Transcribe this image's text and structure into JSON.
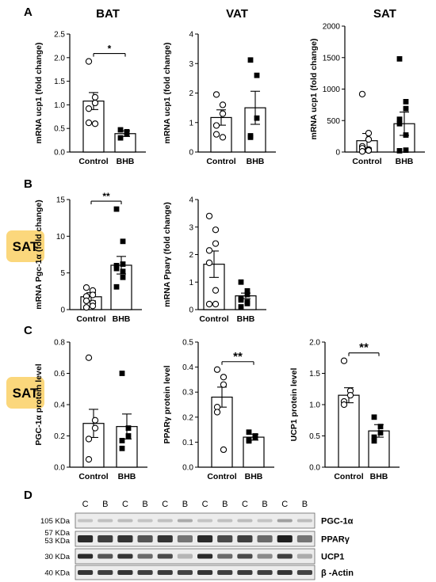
{
  "panel_labels": [
    "A",
    "B",
    "C",
    "D"
  ],
  "sat_badges": [
    "SAT",
    "SAT"
  ],
  "badge_color": "#fbd77c",
  "chart_data": [
    {
      "id": "a1",
      "type": "bar",
      "title": "BAT",
      "ylabel": "mRNA ucp1 (fold change)",
      "ylim": [
        0,
        2.5
      ],
      "yticks": [
        "0.0",
        "0.5",
        "1.0",
        "1.5",
        "2.0",
        "2.5"
      ],
      "categories": [
        "Control",
        "BHB"
      ],
      "values": [
        1.08,
        0.39
      ],
      "errors": [
        0.18,
        0.06
      ],
      "points": [
        [
          1.92,
          1.16,
          1.04,
          0.92,
          0.62,
          0.6
        ],
        [
          0.47,
          0.43,
          0.38,
          0.3
        ]
      ],
      "significance": "*"
    },
    {
      "id": "a2",
      "type": "bar",
      "title": "VAT",
      "ylabel": "mRNA ucp1 (fold change)",
      "ylim": [
        0,
        4
      ],
      "yticks": [
        "0",
        "1",
        "2",
        "3",
        "4"
      ],
      "categories": [
        "Control",
        "BHB"
      ],
      "values": [
        1.17,
        1.5
      ],
      "errors": [
        0.26,
        0.56
      ],
      "points": [
        [
          1.95,
          1.6,
          1.3,
          0.9,
          0.6,
          0.5
        ],
        [
          3.12,
          2.6,
          1.15,
          0.55,
          0.5
        ]
      ],
      "significance": ""
    },
    {
      "id": "a3",
      "type": "bar",
      "title": "SAT",
      "ylabel": "mRNA ucp1 (fold change)",
      "ylim": [
        0,
        2000
      ],
      "yticks": [
        "0",
        "500",
        "1000",
        "1500",
        "2000"
      ],
      "categories": [
        "Control",
        "BHB"
      ],
      "values": [
        180,
        450
      ],
      "errors": [
        115,
        185
      ],
      "points": [
        [
          920,
          300,
          200,
          90,
          60,
          40,
          25,
          10
        ],
        [
          1480,
          800,
          690,
          520,
          450,
          270,
          30,
          20
        ]
      ],
      "significance": ""
    },
    {
      "id": "b1",
      "type": "bar",
      "title": "",
      "ylabel": "mRNA Pgc-1α (fold change)",
      "ylim": [
        0,
        15
      ],
      "yticks": [
        "0",
        "5",
        "10",
        "15"
      ],
      "categories": [
        "Control",
        "BHB"
      ],
      "values": [
        1.75,
        6.05
      ],
      "errors": [
        0.55,
        1.2
      ],
      "points": [
        [
          3.0,
          2.6,
          2.0,
          1.8,
          1.2,
          0.9,
          0.5,
          0.3
        ],
        [
          13.7,
          9.3,
          6.2,
          6.0,
          5.6,
          5.2,
          4.4,
          3.1
        ]
      ],
      "significance": "**"
    },
    {
      "id": "b2",
      "type": "bar",
      "title": "",
      "ylabel": "mRNA Pparγ (fold change)",
      "ylim": [
        0,
        4
      ],
      "yticks": [
        "0",
        "1",
        "2",
        "3",
        "4"
      ],
      "categories": [
        "Control",
        "BHB"
      ],
      "values": [
        1.65,
        0.5
      ],
      "errors": [
        0.48,
        0.1
      ],
      "points": [
        [
          3.4,
          2.9,
          2.4,
          2.15,
          1.7,
          0.7,
          0.2,
          0.2
        ],
        [
          1.0,
          0.68,
          0.55,
          0.42,
          0.35,
          0.28,
          0.22,
          0.1
        ]
      ],
      "significance": ""
    },
    {
      "id": "c1",
      "type": "bar",
      "title": "",
      "ylabel": "PGC-1α protein level",
      "ylim": [
        0,
        0.8
      ],
      "yticks": [
        "0.0",
        "0.2",
        "0.4",
        "0.6",
        "0.8"
      ],
      "categories": [
        "Control",
        "BHB"
      ],
      "values": [
        0.28,
        0.26
      ],
      "errors": [
        0.09,
        0.08
      ],
      "points": [
        [
          0.7,
          0.3,
          0.25,
          0.18,
          0.05
        ],
        [
          0.6,
          0.25,
          0.2,
          0.17,
          0.12
        ]
      ],
      "significance": ""
    },
    {
      "id": "c2",
      "type": "bar",
      "title": "",
      "ylabel": "PPARγ protein level",
      "ylim": [
        0,
        0.5
      ],
      "yticks": [
        "0.0",
        "0.1",
        "0.2",
        "0.3",
        "0.4",
        "0.5"
      ],
      "categories": [
        "Control",
        "BHB"
      ],
      "values": [
        0.28,
        0.12
      ],
      "errors": [
        0.04,
        0.012
      ],
      "points": [
        [
          0.39,
          0.36,
          0.33,
          0.24,
          0.22,
          0.07
        ],
        [
          0.14,
          0.125,
          0.12,
          0.11,
          0.105
        ]
      ],
      "significance": "**"
    },
    {
      "id": "c3",
      "type": "bar",
      "title": "",
      "ylabel": "UCP1 protein level",
      "ylim": [
        0,
        2.0
      ],
      "yticks": [
        "0.0",
        "0.5",
        "1.0",
        "1.5",
        "2.0"
      ],
      "categories": [
        "Control",
        "BHB"
      ],
      "values": [
        1.15,
        0.58
      ],
      "errors": [
        0.12,
        0.1
      ],
      "points": [
        [
          1.7,
          1.22,
          1.15,
          1.05,
          1.0
        ],
        [
          0.8,
          0.65,
          0.55,
          0.48,
          0.42
        ]
      ],
      "significance": "**"
    }
  ],
  "western_blot": {
    "lanes": [
      "C",
      "B",
      "C",
      "B",
      "C",
      "B",
      "C",
      "B",
      "C",
      "B",
      "C",
      "B"
    ],
    "rows": [
      {
        "kda": [
          "105 KDa"
        ],
        "name": "PGC-1α",
        "intensity": [
          0.18,
          0.2,
          0.22,
          0.18,
          0.2,
          0.3,
          0.18,
          0.2,
          0.22,
          0.18,
          0.35,
          0.22
        ]
      },
      {
        "kda": [
          "57 KDa",
          "53 KDa"
        ],
        "name": "PPARγ",
        "intensity": [
          0.9,
          0.8,
          0.85,
          0.7,
          0.85,
          0.55,
          0.9,
          0.75,
          0.8,
          0.6,
          0.95,
          0.55
        ]
      },
      {
        "kda": [
          "30 KDa"
        ],
        "name": "UCP1",
        "intensity": [
          0.9,
          0.7,
          0.85,
          0.6,
          0.75,
          0.25,
          0.9,
          0.6,
          0.75,
          0.45,
          0.8,
          0.3
        ]
      },
      {
        "kda": [
          "40 KDa"
        ],
        "name": "β -Actin",
        "intensity": [
          0.85,
          0.8,
          0.85,
          0.8,
          0.82,
          0.78,
          0.85,
          0.8,
          0.82,
          0.8,
          0.85,
          0.78
        ]
      }
    ]
  }
}
